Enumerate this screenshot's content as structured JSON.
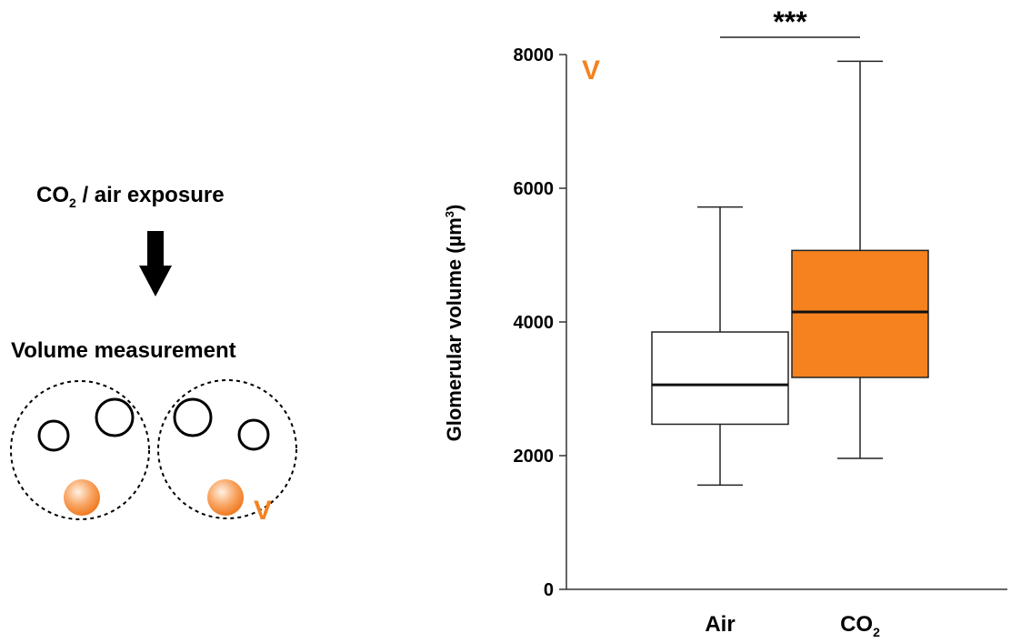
{
  "diagram": {
    "step1_prefix": "CO",
    "step1_sub": "2",
    "step1_suffix": " / air exposure",
    "step2": "Volume measurement",
    "marker_label": "V",
    "accent_color": "#f5821f"
  },
  "chart_data": {
    "type": "box",
    "ylabel_prefix": "Glomerular volume (µm",
    "ylabel_sup": "3",
    "ylabel_suffix": ")",
    "ylim": [
      0,
      8000
    ],
    "yticks": [
      0,
      2000,
      4000,
      6000,
      8000
    ],
    "categories": [
      {
        "label": "Air",
        "sub": ""
      },
      {
        "label": "CO",
        "sub": "2"
      }
    ],
    "series": [
      {
        "category": "Air",
        "min": 1560,
        "q1": 2470,
        "median": 3060,
        "q3": 3850,
        "max": 5720,
        "color": "#ffffff"
      },
      {
        "category": "CO2",
        "min": 1960,
        "q1": 3170,
        "median": 4150,
        "q3": 5070,
        "max": 7900,
        "color": "#f5821f"
      }
    ],
    "significance": {
      "label": "***",
      "between": [
        "Air",
        "CO2"
      ]
    },
    "panel_marker": "V"
  }
}
